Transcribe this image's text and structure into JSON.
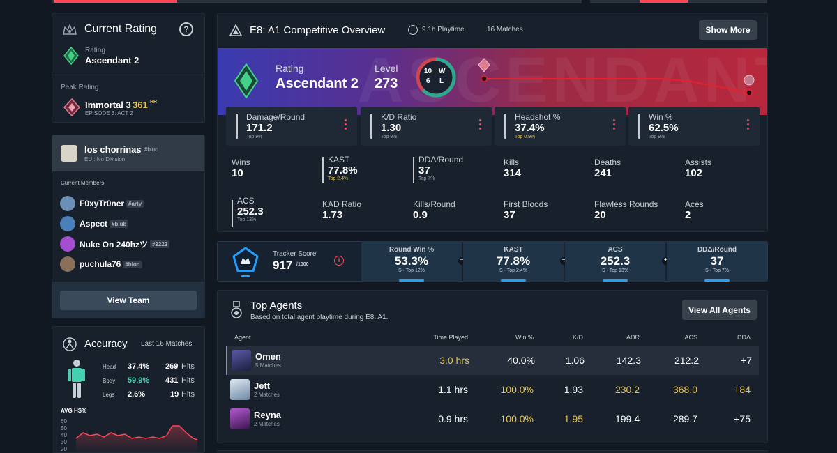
{
  "colors": {
    "accent_red": "#ff4655",
    "gold": "#e8c44c",
    "teal": "#45d0b0",
    "blue": "#1fa0ff"
  },
  "current_rating": {
    "title": "Current Rating",
    "help_icon": "question-circle-icon",
    "rating_label": "Rating",
    "rating_value": "Ascendant 2",
    "peak_label": "Peak Rating",
    "peak_value": "Immortal 3",
    "peak_rr": "361",
    "peak_rr_unit": "RR",
    "peak_episode": "EPISODE 3: ACT 2"
  },
  "team": {
    "name": "los chorrinas",
    "tag": "#bluc",
    "division": "EU : No Division",
    "members_label": "Current Members",
    "members": [
      {
        "name": "F0xyTr0ner",
        "tag": "#arty",
        "color": "#6b8fb5"
      },
      {
        "name": "Aspect",
        "tag": "#blub",
        "color": "#4a7fb8"
      },
      {
        "name": "Nuke On 240hzツ",
        "tag": "#2222",
        "color": "#a44fd0"
      },
      {
        "name": "puchula76",
        "tag": "#bloc",
        "color": "#8a6f5a"
      }
    ],
    "view_team_label": "View Team"
  },
  "accuracy": {
    "title": "Accuracy",
    "subtitle": "Last 16 Matches",
    "rows": [
      {
        "part": "Head",
        "pct": "37.4%",
        "hits": "269",
        "hits_label": "Hits"
      },
      {
        "part": "Body",
        "pct": "59.9%",
        "hits": "431",
        "hits_label": "Hits"
      },
      {
        "part": "Legs",
        "pct": "2.6%",
        "hits": "19",
        "hits_label": "Hits"
      }
    ],
    "avg_hs_label": "AVG HS%",
    "avg_hs_ticks": [
      "60",
      "50",
      "40",
      "30",
      "20"
    ]
  },
  "overview": {
    "title": "E8: A1 Competitive Overview",
    "playtime": "9.1h Playtime",
    "matches": "16 Matches",
    "show_more_label": "Show More",
    "rating_label": "Rating",
    "rating_value": "Ascendant 2",
    "level_label": "Level",
    "level_value": "273",
    "wins": "10",
    "losses": "6",
    "w_letter": "W",
    "l_letter": "L",
    "win_fraction": 0.625,
    "banner_watermark": "ASCENDANT"
  },
  "stat_cards": [
    {
      "label": "Damage/Round",
      "value": "171.2",
      "top": "Top 9%"
    },
    {
      "label": "K/D Ratio",
      "value": "1.30",
      "top": "Top 9%"
    },
    {
      "label": "Headshot %",
      "value": "37.4%",
      "top": "Top 0.9%"
    },
    {
      "label": "Win %",
      "value": "62.5%",
      "top": "Top 9%"
    }
  ],
  "grid_stats": [
    {
      "label": "Wins",
      "value": "10",
      "top": ""
    },
    {
      "label": "KAST",
      "value": "77.8%",
      "top": "Top 2.4%"
    },
    {
      "label": "DDΔ/Round",
      "value": "37",
      "top": "Top 7%"
    },
    {
      "label": "Kills",
      "value": "314",
      "top": ""
    },
    {
      "label": "Deaths",
      "value": "241",
      "top": ""
    },
    {
      "label": "Assists",
      "value": "102",
      "top": ""
    },
    {
      "label": "ACS",
      "value": "252.3",
      "top": "Top 13%"
    },
    {
      "label": "KAD Ratio",
      "value": "1.73",
      "top": ""
    },
    {
      "label": "Kills/Round",
      "value": "0.9",
      "top": ""
    },
    {
      "label": "First Bloods",
      "value": "37",
      "top": ""
    },
    {
      "label": "Flawless Rounds",
      "value": "20",
      "top": ""
    },
    {
      "label": "Aces",
      "value": "2",
      "top": ""
    }
  ],
  "tracker": {
    "label": "Tracker Score",
    "score": "917",
    "max": "/1000",
    "cells": [
      {
        "label": "Round Win %",
        "value": "53.3%",
        "sub": "S · Top 12%"
      },
      {
        "label": "KAST",
        "value": "77.8%",
        "sub": "S · Top 2.4%"
      },
      {
        "label": "ACS",
        "value": "252.3",
        "sub": "S · Top 13%"
      },
      {
        "label": "DDΔ/Round",
        "value": "37",
        "sub": "S · Top 7%"
      }
    ]
  },
  "top_agents": {
    "title": "Top Agents",
    "subtitle": "Based on total agent playtime during E8: A1.",
    "view_all_label": "View All Agents",
    "headers": {
      "agent": "Agent",
      "time": "Time Played",
      "win": "Win %",
      "kd": "K/D",
      "adr": "ADR",
      "acs": "ACS",
      "dda": "DDΔ"
    },
    "rows": [
      {
        "name": "Omen",
        "matches": "5 Matches",
        "time": "3.0 hrs",
        "win": "40.0%",
        "kd": "1.06",
        "adr": "142.3",
        "acs": "212.2",
        "dda": "+7",
        "color": "#3b3a6e"
      },
      {
        "name": "Jett",
        "matches": "2 Matches",
        "time": "1.1 hrs",
        "win": "100.0%",
        "kd": "1.93",
        "adr": "230.2",
        "acs": "368.0",
        "dda": "+84",
        "color": "#8fb7d8"
      },
      {
        "name": "Reyna",
        "matches": "2 Matches",
        "time": "0.9 hrs",
        "win": "100.0%",
        "kd": "1.95",
        "adr": "199.4",
        "acs": "289.7",
        "dda": "+75",
        "color": "#8d3aa8"
      }
    ]
  }
}
